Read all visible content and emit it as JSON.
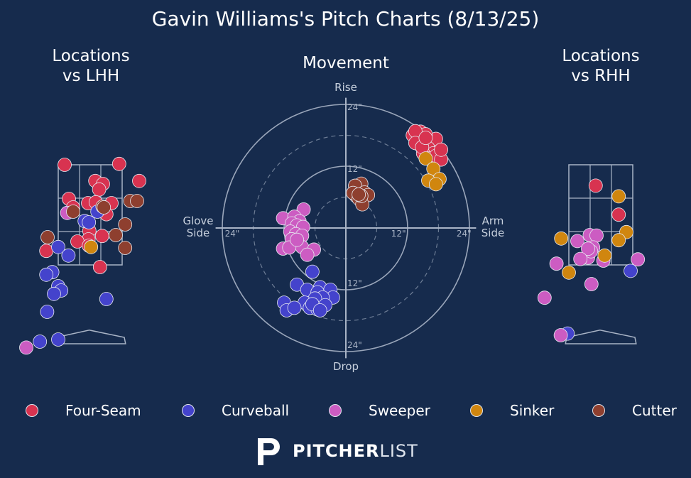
{
  "title": "Gavin Williams's Pitch Charts (8/13/25)",
  "colors": {
    "Four-Seam": "#d83350",
    "Curveball": "#4443cc",
    "Sweeper": "#cc5cc2",
    "Sinker": "#d0860f",
    "Cutter": "#8e3f2f",
    "background": "#162b4d",
    "lines": "#a9b4c6"
  },
  "legend": [
    {
      "name": "Four-Seam"
    },
    {
      "name": "Curveball"
    },
    {
      "name": "Sweeper"
    },
    {
      "name": "Sinker"
    },
    {
      "name": "Cutter"
    }
  ],
  "branding": {
    "bold": "PITCHER",
    "light": "LIST"
  },
  "chart_data": [
    {
      "type": "scatter",
      "title": "Locations\nvs LHH",
      "x_unit": "ft (plate_x, catcher view)",
      "y_unit": "ft (plate_z)",
      "series": [
        {
          "name": "Four-Seam",
          "points": [
            [
              -0.6,
              4.3
            ],
            [
              0.68,
              4.32
            ],
            [
              0.12,
              3.92
            ],
            [
              0.3,
              3.85
            ],
            [
              0.21,
              3.72
            ],
            [
              1.15,
              3.92
            ],
            [
              -0.5,
              3.5
            ],
            [
              -0.4,
              3.3
            ],
            [
              -0.05,
              3.4
            ],
            [
              0.13,
              3.42
            ],
            [
              0.5,
              3.4
            ],
            [
              0.38,
              3.14
            ],
            [
              -0.02,
              2.75
            ],
            [
              0.28,
              2.63
            ],
            [
              -0.04,
              2.55
            ],
            [
              -0.3,
              2.5
            ],
            [
              -0.03,
              2.4
            ],
            [
              -1.03,
              2.28
            ],
            [
              0.23,
              1.9
            ]
          ]
        },
        {
          "name": "Curveball",
          "points": [
            [
              0.17,
              3.2
            ],
            [
              -0.13,
              2.98
            ],
            [
              -0.03,
              2.95
            ],
            [
              -0.75,
              2.37
            ],
            [
              -0.51,
              2.17
            ],
            [
              -0.89,
              1.78
            ],
            [
              -1.03,
              1.72
            ],
            [
              -0.75,
              1.45
            ],
            [
              -0.68,
              1.35
            ],
            [
              -0.85,
              1.27
            ],
            [
              0.38,
              1.15
            ],
            [
              -1.01,
              0.85
            ],
            [
              -1.18,
              0.15
            ],
            [
              -0.75,
              0.2
            ]
          ]
        },
        {
          "name": "Sweeper",
          "points": [
            [
              -0.54,
              3.17
            ],
            [
              -1.5,
              0.01
            ]
          ]
        },
        {
          "name": "Sinker",
          "points": [
            [
              0.02,
              2.37
            ]
          ]
        },
        {
          "name": "Cutter",
          "points": [
            [
              0.94,
              3.45
            ],
            [
              1.1,
              3.45
            ],
            [
              0.29,
              3.32
            ],
            [
              -0.4,
              3.2
            ],
            [
              0.32,
              3.3
            ],
            [
              0.82,
              2.9
            ],
            [
              -1,
              2.6
            ],
            [
              0.6,
              2.65
            ],
            [
              0.82,
              2.35
            ]
          ]
        }
      ]
    },
    {
      "type": "scatter",
      "title": "Movement",
      "x_unit": "inches horizontal break (glove side negative)",
      "y_unit": "inches induced vertical break",
      "axis_labels": {
        "top": "Rise",
        "bottom": "Drop",
        "left": "Glove\nSide",
        "right": "Arm\nSide"
      },
      "ring_labels": [
        "12\"",
        "24\""
      ],
      "series": [
        {
          "name": "Four-Seam",
          "points": [
            [
              13,
              18
            ],
            [
              14,
              17
            ],
            [
              15.5,
              16.8
            ],
            [
              16.5,
              16.5
            ],
            [
              17.5,
              17.3
            ],
            [
              14.5,
              18.7
            ],
            [
              15.5,
              18.2
            ],
            [
              13.5,
              18.8
            ],
            [
              14.5,
              16
            ],
            [
              16,
              15.5
            ],
            [
              17,
              14.5
            ],
            [
              15,
              14.5
            ],
            [
              16,
              13.5
            ],
            [
              17.5,
              14
            ],
            [
              18.5,
              13.3
            ],
            [
              18.5,
              15.2
            ],
            [
              13.5,
              16.5
            ],
            [
              14.8,
              15.7
            ],
            [
              15.5,
              17.5
            ]
          ]
        },
        {
          "name": "Curveball",
          "points": [
            [
              -6.5,
              -8.5
            ],
            [
              -9.5,
              -11
            ],
            [
              -7.5,
              -12
            ],
            [
              -5,
              -11.5
            ],
            [
              -3,
              -12
            ],
            [
              -2.5,
              -13.5
            ],
            [
              -5.5,
              -12.5
            ],
            [
              -4.5,
              -13.5
            ],
            [
              -6,
              -13.7
            ],
            [
              -12,
              -14.5
            ],
            [
              -8,
              -14.5
            ],
            [
              -11.5,
              -16
            ],
            [
              -10,
              -15.5
            ],
            [
              -7,
              -15.5
            ],
            [
              -5.5,
              -15.8
            ],
            [
              -6.5,
              -14.8
            ],
            [
              -4,
              -15
            ],
            [
              -5,
              -16
            ]
          ]
        },
        {
          "name": "Sweeper",
          "points": [
            [
              -8.2,
              3.6
            ],
            [
              -12.2,
              1.9
            ],
            [
              -10,
              2.2
            ],
            [
              -9,
              1.3
            ],
            [
              -10.5,
              0.9
            ],
            [
              -9.5,
              0.5
            ],
            [
              -8.3,
              0.2
            ],
            [
              -10.8,
              -0.7
            ],
            [
              -9.7,
              -1.2
            ],
            [
              -8.5,
              -1.5
            ],
            [
              -10.5,
              -2.2
            ],
            [
              -8.5,
              -3.7
            ],
            [
              -12.2,
              -4
            ],
            [
              -11,
              -3.8
            ],
            [
              -6.2,
              -4.2
            ],
            [
              -9.5,
              -2.3
            ],
            [
              -7.5,
              -5.2
            ]
          ]
        },
        {
          "name": "Sinker",
          "points": [
            [
              15.5,
              13.5
            ],
            [
              17,
              11.5
            ],
            [
              18.2,
              9.5
            ],
            [
              16,
              9.2
            ],
            [
              17.5,
              8.5
            ]
          ]
        },
        {
          "name": "Cutter",
          "points": [
            [
              3,
              8.6
            ],
            [
              1.8,
              8.2
            ],
            [
              2.6,
              6.5
            ],
            [
              3.6,
              6.9
            ],
            [
              2,
              6.2
            ],
            [
              4.3,
              6.4
            ],
            [
              1.4,
              6.8
            ],
            [
              2.5,
              5.7
            ],
            [
              3.2,
              4.6
            ],
            [
              3,
              6.2
            ],
            [
              2.5,
              6.5
            ]
          ]
        }
      ]
    },
    {
      "type": "scatter",
      "title": "Locations\nvs RHH",
      "x_unit": "ft (plate_x, catcher view)",
      "y_unit": "ft (plate_z)",
      "series": [
        {
          "name": "Four-Seam",
          "points": [
            [
              -0.12,
              3.81
            ],
            [
              0.42,
              3.13
            ]
          ]
        },
        {
          "name": "Curveball",
          "points": [
            [
              0.7,
              1.81
            ],
            [
              -0.78,
              0.34
            ]
          ]
        },
        {
          "name": "Sweeper",
          "points": [
            [
              -0.55,
              2.51
            ],
            [
              -0.26,
              2.65
            ],
            [
              -0.1,
              2.64
            ],
            [
              -0.18,
              2.36
            ],
            [
              -0.3,
              2.12
            ],
            [
              -0.23,
              2.27
            ],
            [
              -0.3,
              2.33
            ],
            [
              -0.48,
              2.09
            ],
            [
              0.06,
              2.05
            ],
            [
              -1.04,
              1.98
            ],
            [
              -0.22,
              1.5
            ],
            [
              0.87,
              2.08
            ],
            [
              -1.32,
              1.18
            ],
            [
              -0.94,
              0.3
            ]
          ]
        },
        {
          "name": "Sinker",
          "points": [
            [
              0.42,
              3.56
            ],
            [
              0.6,
              2.72
            ],
            [
              0.42,
              2.53
            ],
            [
              -0.93,
              2.57
            ],
            [
              0.09,
              2.17
            ],
            [
              -0.75,
              1.77
            ]
          ]
        },
        {
          "name": "Cutter",
          "points": []
        }
      ]
    }
  ]
}
